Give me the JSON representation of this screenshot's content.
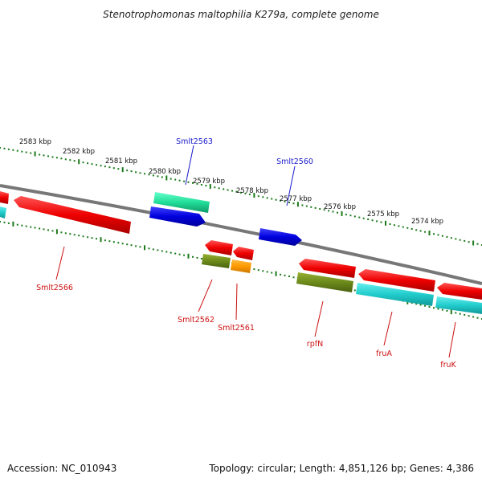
{
  "title": "Stenotrophomonas maltophilia K279a, complete genome",
  "footer": {
    "accession": "Accession: NC_010943",
    "topology": "Topology: circular; Length: 4,851,126 bp; Genes: 4,386"
  },
  "colors": {
    "backbone": "#888888",
    "tick": "#1a7a1a",
    "label_forward": "#1a1acc",
    "label_reverse": "#cc1111",
    "red": "#ee1111",
    "blue": "#1111dd",
    "teal": "#22ddaa",
    "olive": "#6b8a1a",
    "orange": "#ff9900",
    "cyan": "#22cccc"
  },
  "kbp_labels": [
    "2583 kbp",
    "2582 kbp",
    "2581 kbp",
    "2580 kbp",
    "2579 kbp",
    "2578 kbp",
    "2577 kbp",
    "2576 kbp",
    "2575 kbp",
    "2574 kbp"
  ],
  "gene_labels": {
    "smlt2563": "Smlt2563",
    "smlt2560": "Smlt2560",
    "smlt2566": "Smlt2566",
    "smlt2562": "Smlt2562",
    "smlt2561": "Smlt2561",
    "rpfn": "rpfN",
    "frua": "fruA",
    "fruk": "fruK"
  },
  "genes": [
    {
      "id": "smlt2563",
      "color": "teal",
      "strand": "forward",
      "labelled": true
    },
    {
      "id": "smlt2563b",
      "color": "blue",
      "strand": "forward",
      "labelled": false
    },
    {
      "id": "smlt2560",
      "color": "blue",
      "strand": "forward",
      "labelled": true
    },
    {
      "id": "smlt2566",
      "color": "red",
      "strand": "reverse",
      "labelled": true
    },
    {
      "id": "smlt2562",
      "color": "olive",
      "strand": "reverse",
      "labelled": true
    },
    {
      "id": "smlt2561",
      "color": "orange",
      "strand": "reverse",
      "labelled": true
    },
    {
      "id": "rpfn",
      "color": "olive",
      "strand": "reverse",
      "labelled": true
    },
    {
      "id": "frua",
      "color": "cyan",
      "strand": "reverse",
      "labelled": true
    },
    {
      "id": "fruk",
      "color": "cyan",
      "strand": "reverse",
      "labelled": true
    }
  ]
}
